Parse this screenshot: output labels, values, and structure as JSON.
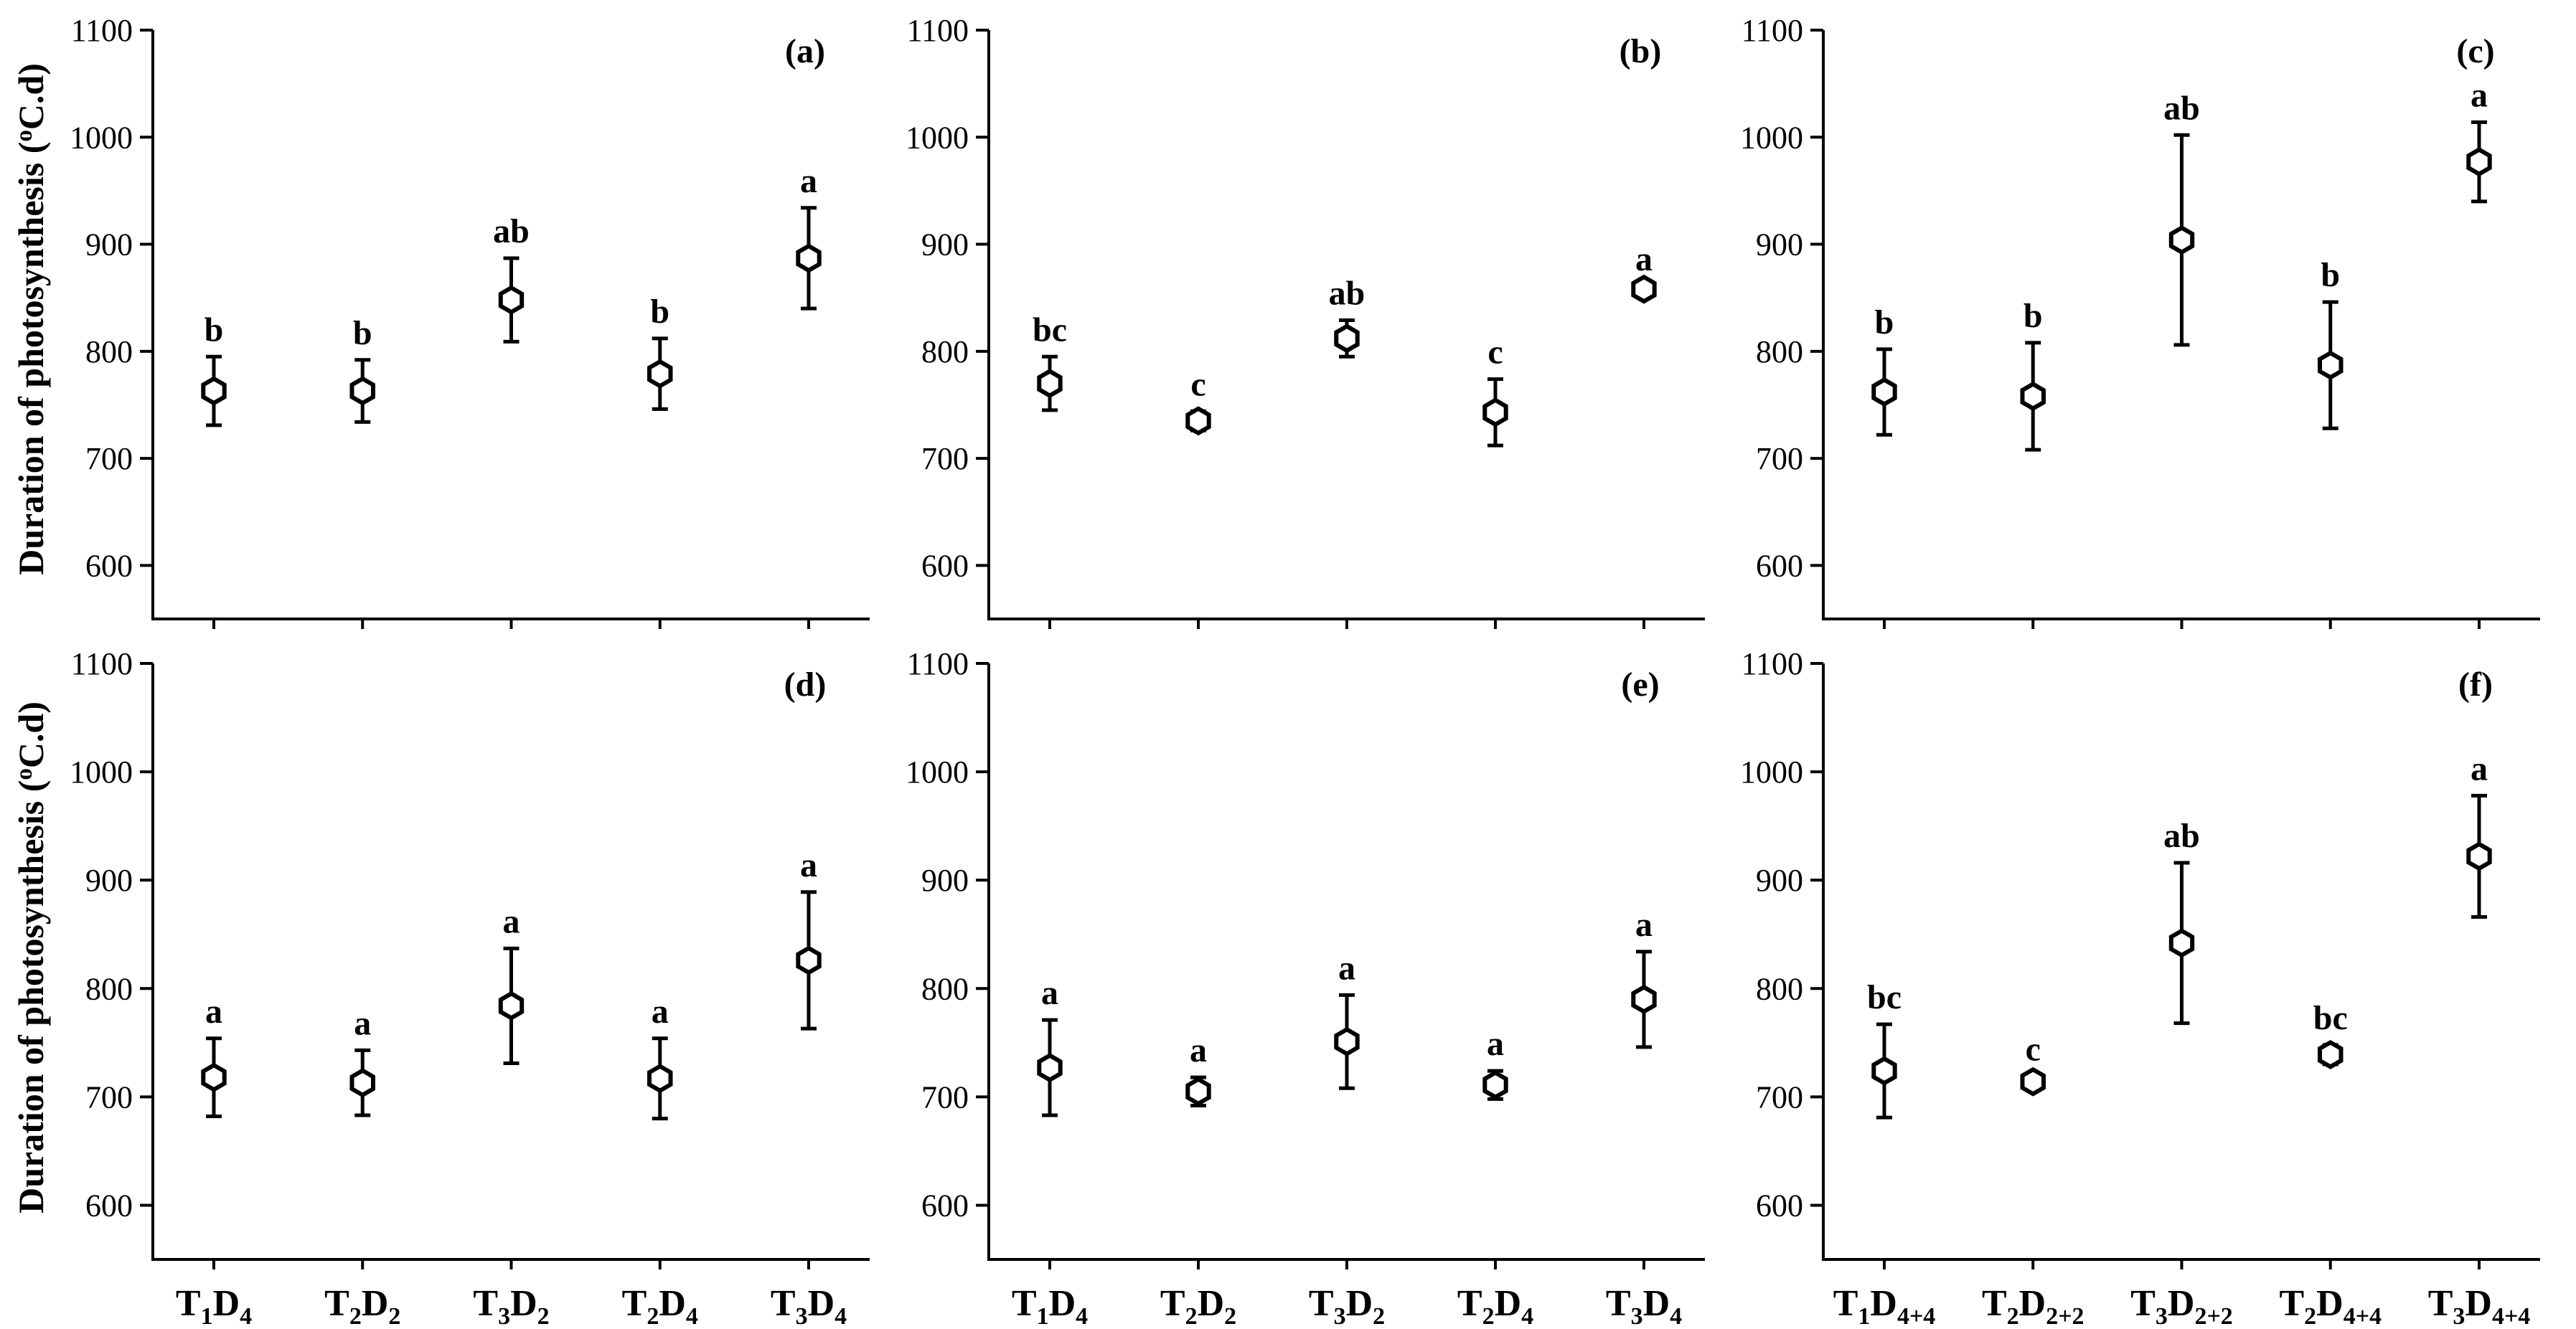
{
  "chart_data": [
    {
      "panel": "(a)",
      "type": "scatter",
      "categories": [
        [
          "T",
          "1",
          "D",
          "4"
        ],
        [
          "T",
          "2",
          "D",
          "2"
        ],
        [
          "T",
          "3",
          "D",
          "2"
        ],
        [
          "T",
          "2",
          "D",
          "4"
        ],
        [
          "T",
          "3",
          "D",
          "4"
        ]
      ],
      "values": [
        763,
        763,
        848,
        779,
        887
      ],
      "errors": [
        32,
        29,
        39,
        33,
        47
      ],
      "letters": [
        "b",
        "b",
        "ab",
        "b",
        "a"
      ],
      "ylim": [
        550,
        1100
      ],
      "yticks": [
        600,
        700,
        800,
        900,
        1000,
        1100
      ]
    },
    {
      "panel": "(b)",
      "type": "scatter",
      "categories": [
        [
          "T",
          "1",
          "D",
          "4"
        ],
        [
          "T",
          "2",
          "D",
          "2"
        ],
        [
          "T",
          "3",
          "D",
          "2"
        ],
        [
          "T",
          "2",
          "D",
          "4"
        ],
        [
          "T",
          "3",
          "D",
          "4"
        ]
      ],
      "values": [
        770,
        735,
        812,
        743,
        858
      ],
      "errors": [
        25,
        9,
        17,
        31,
        3
      ],
      "letters": [
        "bc",
        "c",
        "ab",
        "c",
        "a"
      ],
      "ylim": [
        550,
        1100
      ],
      "yticks": [
        600,
        700,
        800,
        900,
        1000,
        1100
      ]
    },
    {
      "panel": "(c)",
      "type": "scatter",
      "categories": [
        [
          "T",
          "1",
          "D",
          "4+4"
        ],
        [
          "T",
          "2",
          "D",
          "2+2"
        ],
        [
          "T",
          "3",
          "D",
          "2+2"
        ],
        [
          "T",
          "2",
          "D",
          "4+4"
        ],
        [
          "T",
          "3",
          "D",
          "4+4"
        ]
      ],
      "values": [
        762,
        758,
        904,
        787,
        977
      ],
      "errors": [
        40,
        50,
        98,
        59,
        37
      ],
      "letters": [
        "b",
        "b",
        "ab",
        "b",
        "a"
      ],
      "ylim": [
        550,
        1100
      ],
      "yticks": [
        600,
        700,
        800,
        900,
        1000,
        1100
      ]
    },
    {
      "panel": "(d)",
      "type": "scatter",
      "categories": [
        [
          "T",
          "1",
          "D",
          "4"
        ],
        [
          "T",
          "2",
          "D",
          "2"
        ],
        [
          "T",
          "3",
          "D",
          "2"
        ],
        [
          "T",
          "2",
          "D",
          "4"
        ],
        [
          "T",
          "3",
          "D",
          "4"
        ]
      ],
      "values": [
        718,
        713,
        784,
        717,
        826
      ],
      "errors": [
        36,
        30,
        53,
        37,
        63
      ],
      "letters": [
        "a",
        "a",
        "a",
        "a",
        "a"
      ],
      "ylim": [
        550,
        1100
      ],
      "yticks": [
        600,
        700,
        800,
        900,
        1000,
        1100
      ]
    },
    {
      "panel": "(e)",
      "type": "scatter",
      "categories": [
        [
          "T",
          "1",
          "D",
          "4"
        ],
        [
          "T",
          "2",
          "D",
          "2"
        ],
        [
          "T",
          "3",
          "D",
          "2"
        ],
        [
          "T",
          "2",
          "D",
          "4"
        ],
        [
          "T",
          "3",
          "D",
          "4"
        ]
      ],
      "values": [
        727,
        705,
        751,
        711,
        790
      ],
      "errors": [
        44,
        13,
        43,
        13,
        44
      ],
      "letters": [
        "a",
        "a",
        "a",
        "a",
        "a"
      ],
      "ylim": [
        550,
        1100
      ],
      "yticks": [
        600,
        700,
        800,
        900,
        1000,
        1100
      ]
    },
    {
      "panel": "(f)",
      "type": "scatter",
      "categories": [
        [
          "T",
          "1",
          "D",
          "4+4"
        ],
        [
          "T",
          "2",
          "D",
          "2+2"
        ],
        [
          "T",
          "3",
          "D",
          "2+2"
        ],
        [
          "T",
          "2",
          "D",
          "4+4"
        ],
        [
          "T",
          "3",
          "D",
          "4+4"
        ]
      ],
      "values": [
        724,
        714,
        842,
        739,
        922
      ],
      "errors": [
        43,
        5,
        74,
        9,
        56
      ],
      "letters": [
        "bc",
        "c",
        "ab",
        "bc",
        "a"
      ],
      "ylim": [
        550,
        1100
      ],
      "yticks": [
        600,
        700,
        800,
        900,
        1000,
        1100
      ]
    }
  ],
  "ylabel": {
    "pre": "Duration of photosynthesis (",
    "sup": "o",
    "post": "C.d)"
  }
}
